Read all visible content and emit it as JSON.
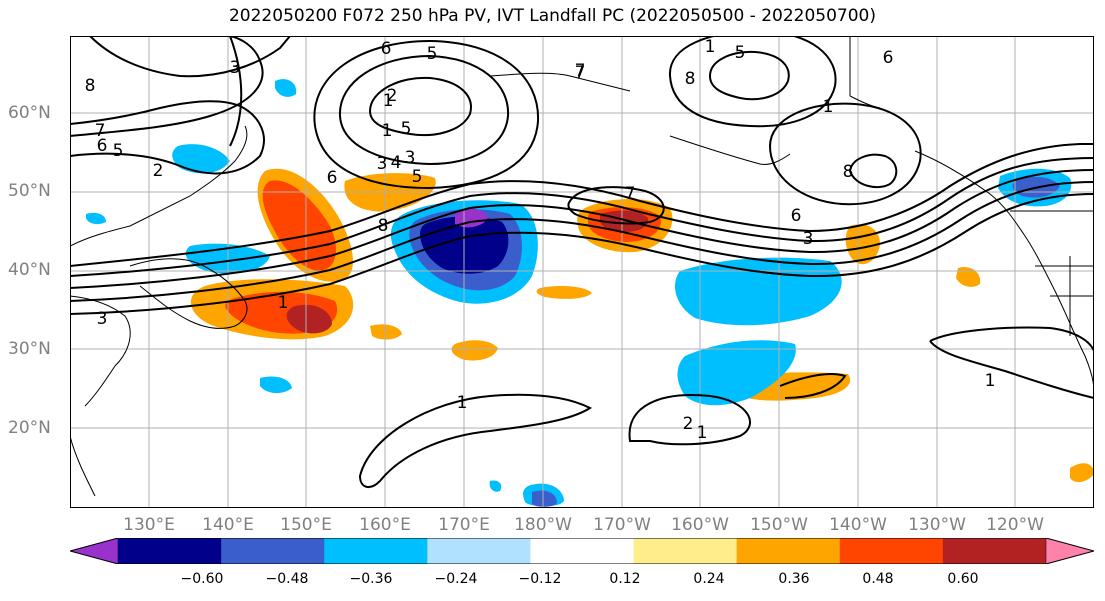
{
  "title": "2022050200 F072 250 hPa PV, IVT Landfall PC (2022050500 - 2022050700)",
  "lat_labels": [
    "60°N",
    "50°N",
    "40°N",
    "30°N",
    "20°N"
  ],
  "lon_labels": [
    "130°E",
    "140°E",
    "150°E",
    "160°E",
    "170°E",
    "180°W",
    "170°W",
    "160°W",
    "150°W",
    "140°W",
    "130°W",
    "120°W"
  ],
  "colorbar": {
    "colors": [
      "#9932CC",
      "#00008B",
      "#3A5FCD",
      "#00BFFF",
      "#B0E2FF",
      "#FFFFFF",
      "#FFEC8B",
      "#FFA500",
      "#FF4500",
      "#B22222",
      "#FF82AB"
    ],
    "tick_labels": [
      "−0.60",
      "−0.48",
      "−0.36",
      "−0.24",
      "−0.12",
      "0.12",
      "0.24",
      "0.36",
      "0.48",
      "0.60"
    ]
  },
  "contour_labels": [
    "6",
    "5",
    "3",
    "8",
    "5",
    "7",
    "6",
    "2",
    "5",
    "1",
    "6",
    "7",
    "2",
    "1",
    "5",
    "3",
    "4",
    "3",
    "5",
    "6",
    "1",
    "8",
    "1",
    "8",
    "7",
    "7",
    "8",
    "6",
    "3",
    "3",
    "1",
    "1",
    "2",
    "1",
    "1"
  ],
  "colors": {
    "frame": "#000000",
    "grid": "#b0b0b0",
    "axis_label": "#808080",
    "contour": "#000000"
  }
}
